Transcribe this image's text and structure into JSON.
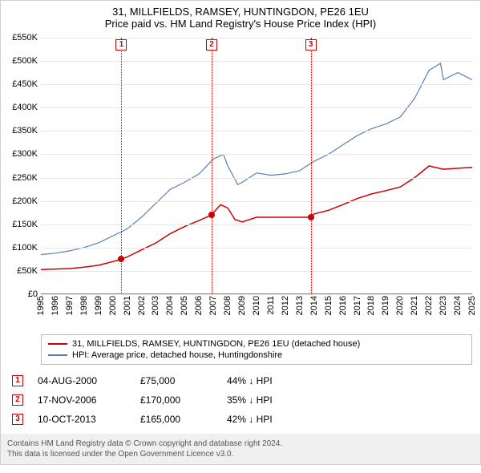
{
  "title": {
    "line1": "31, MILLFIELDS, RAMSEY, HUNTINGDON, PE26 1EU",
    "line2": "Price paid vs. HM Land Registry's House Price Index (HPI)"
  },
  "chart": {
    "type": "line",
    "background_color": "#ffffff",
    "grid_color": "#e8e8e8",
    "axis_color": "#888888",
    "x": {
      "min": 1995,
      "max": 2025,
      "ticks": [
        1995,
        1996,
        1997,
        1998,
        1999,
        2000,
        2001,
        2002,
        2003,
        2004,
        2005,
        2006,
        2007,
        2008,
        2009,
        2010,
        2011,
        2012,
        2013,
        2014,
        2015,
        2016,
        2017,
        2018,
        2019,
        2020,
        2021,
        2022,
        2023,
        2024,
        2025
      ],
      "label_fontsize": 11
    },
    "y": {
      "min": 0,
      "max": 550000,
      "ticks": [
        0,
        50000,
        100000,
        150000,
        200000,
        250000,
        300000,
        350000,
        400000,
        450000,
        500000,
        550000
      ],
      "tick_labels": [
        "£0",
        "£50K",
        "£100K",
        "£150K",
        "£200K",
        "£250K",
        "£300K",
        "£350K",
        "£400K",
        "£450K",
        "£500K",
        "£550K"
      ],
      "label_fontsize": 11
    },
    "series": [
      {
        "name": "property",
        "label": "31, MILLFIELDS, RAMSEY, HUNTINGDON, PE26 1EU (detached house)",
        "color": "#cc0000",
        "line_width": 1.5,
        "points": [
          [
            1995,
            53000
          ],
          [
            1996,
            54000
          ],
          [
            1997,
            55000
          ],
          [
            1998,
            58000
          ],
          [
            1999,
            62000
          ],
          [
            2000,
            70000
          ],
          [
            2000.6,
            75000
          ],
          [
            2001,
            80000
          ],
          [
            2002,
            95000
          ],
          [
            2003,
            110000
          ],
          [
            2004,
            130000
          ],
          [
            2005,
            145000
          ],
          [
            2006,
            158000
          ],
          [
            2006.88,
            170000
          ],
          [
            2007,
            175000
          ],
          [
            2007.5,
            192000
          ],
          [
            2008,
            185000
          ],
          [
            2008.5,
            160000
          ],
          [
            2009,
            155000
          ],
          [
            2010,
            165000
          ],
          [
            2011,
            165000
          ],
          [
            2012,
            165000
          ],
          [
            2013,
            165000
          ],
          [
            2013.77,
            165000
          ],
          [
            2014,
            172000
          ],
          [
            2015,
            180000
          ],
          [
            2016,
            192000
          ],
          [
            2017,
            205000
          ],
          [
            2018,
            215000
          ],
          [
            2019,
            222000
          ],
          [
            2020,
            230000
          ],
          [
            2021,
            250000
          ],
          [
            2022,
            275000
          ],
          [
            2023,
            268000
          ],
          [
            2024,
            270000
          ],
          [
            2025,
            272000
          ]
        ]
      },
      {
        "name": "hpi",
        "label": "HPI: Average price, detached house, Huntingdonshire",
        "color": "#5b7fb5",
        "line_width": 1.2,
        "points": [
          [
            1995,
            85000
          ],
          [
            1996,
            88000
          ],
          [
            1997,
            93000
          ],
          [
            1998,
            100000
          ],
          [
            1999,
            110000
          ],
          [
            2000,
            125000
          ],
          [
            2001,
            140000
          ],
          [
            2002,
            165000
          ],
          [
            2003,
            195000
          ],
          [
            2004,
            225000
          ],
          [
            2005,
            240000
          ],
          [
            2006,
            258000
          ],
          [
            2007,
            290000
          ],
          [
            2007.7,
            300000
          ],
          [
            2008,
            275000
          ],
          [
            2008.7,
            235000
          ],
          [
            2009,
            240000
          ],
          [
            2010,
            260000
          ],
          [
            2011,
            255000
          ],
          [
            2012,
            258000
          ],
          [
            2013,
            265000
          ],
          [
            2014,
            285000
          ],
          [
            2015,
            300000
          ],
          [
            2016,
            320000
          ],
          [
            2017,
            340000
          ],
          [
            2018,
            355000
          ],
          [
            2019,
            365000
          ],
          [
            2020,
            380000
          ],
          [
            2021,
            420000
          ],
          [
            2022,
            480000
          ],
          [
            2022.8,
            495000
          ],
          [
            2023,
            460000
          ],
          [
            2024,
            475000
          ],
          [
            2025,
            460000
          ]
        ]
      }
    ],
    "sale_markers": {
      "color": "#cc0000",
      "dot_color": "#cc0000",
      "items": [
        {
          "n": "1",
          "x": 2000.6,
          "y": 75000
        },
        {
          "n": "2",
          "x": 2006.88,
          "y": 170000
        },
        {
          "n": "3",
          "x": 2013.77,
          "y": 165000
        }
      ]
    }
  },
  "legend": [
    {
      "color": "#cc0000",
      "text": "31, MILLFIELDS, RAMSEY, HUNTINGDON, PE26 1EU (detached house)"
    },
    {
      "color": "#5b7fb5",
      "text": "HPI: Average price, detached house, Huntingdonshire"
    }
  ],
  "events": [
    {
      "n": "1",
      "date": "04-AUG-2000",
      "price": "£75,000",
      "diff": "44% ↓ HPI"
    },
    {
      "n": "2",
      "date": "17-NOV-2006",
      "price": "£170,000",
      "diff": "35% ↓ HPI"
    },
    {
      "n": "3",
      "date": "10-OCT-2013",
      "price": "£165,000",
      "diff": "42% ↓ HPI"
    }
  ],
  "footer": {
    "line1": "Contains HM Land Registry data © Crown copyright and database right 2024.",
    "line2": "This data is licensed under the Open Government Licence v3.0."
  }
}
